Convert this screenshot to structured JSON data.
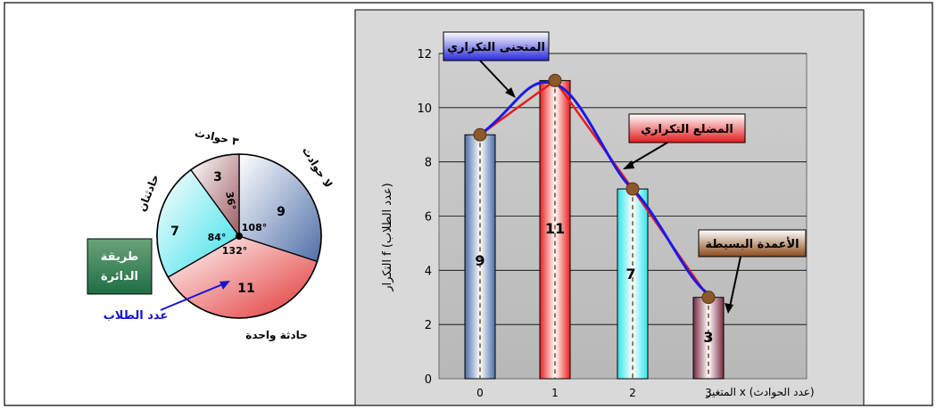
{
  "pie_chart": {
    "method_box": {
      "line1": "طريقة",
      "line2": "الدائرة"
    },
    "students_callout": "عدد الطلاب",
    "slices": [
      {
        "category": "لا حوادث",
        "value": 9,
        "angle_label": "108°",
        "color": "#4f6fa8"
      },
      {
        "category": "حادثة واحدة",
        "value": 11,
        "angle_label": "132°",
        "color": "#e23333"
      },
      {
        "category": "حادثتان",
        "value": 7,
        "angle_label": "84°",
        "color": "#35e0e8"
      },
      {
        "category": "٣ حوادث",
        "value": 3,
        "angle_label": "36°",
        "color": "#9c5a62"
      }
    ]
  },
  "chart_data": {
    "type": "bar",
    "x": [
      0,
      1,
      2,
      3
    ],
    "values": [
      9,
      11,
      7,
      3
    ],
    "bar_labels": [
      "9",
      "11",
      "7",
      "3"
    ],
    "bar_colors": [
      "#4a6ea6",
      "#e82020",
      "#2fe4ec",
      "#7a2840"
    ],
    "ylim": [
      0,
      12
    ],
    "yticks": [
      0,
      2,
      4,
      6,
      8,
      10,
      12
    ],
    "xticks": [
      "0",
      "1",
      "2",
      "3"
    ],
    "xlabel": "المتغير x (عدد الحوادث)",
    "ylabel": "التكرار f (عدد الطلاب)",
    "grid": true,
    "curve_color": "#1a1ae6",
    "polygon_color": "#e81c1c",
    "point_color": "#8b5a2b",
    "annotations": {
      "curve": "المنحنى التكراري",
      "polygon": "المضلع التكراري",
      "bars": "الأعمدة البسيطة"
    }
  }
}
